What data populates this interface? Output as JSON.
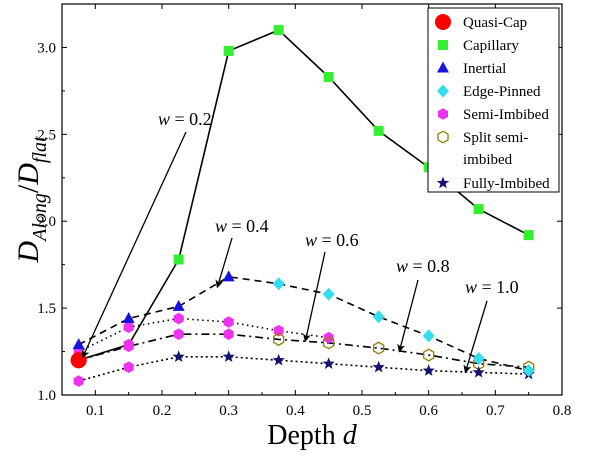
{
  "chart_data": {
    "type": "line",
    "title": "",
    "xlabel": "Depth d",
    "ylabel": "D_{Along}/D_{flat}",
    "xlim": [
      0.05,
      0.8
    ],
    "ylim": [
      1.0,
      3.25
    ],
    "x_ticks": [
      0.1,
      0.2,
      0.3,
      0.4,
      0.5,
      0.6,
      0.7,
      0.8
    ],
    "y_ticks": [
      1.0,
      1.5,
      2.0,
      2.5,
      3.0
    ],
    "x_tick_labels": [
      "0.1",
      "0.2",
      "0.3",
      "0.4",
      "0.5",
      "0.6",
      "0.7",
      "0.8"
    ],
    "y_tick_labels": [
      "1.0",
      "1.5",
      "2.0",
      "2.5",
      "3.0"
    ],
    "grid": false,
    "legend_position": "top-right",
    "legend": [
      {
        "label": "Quasi-Cap",
        "marker": "circle",
        "color": "#ff0000"
      },
      {
        "label": "Capillary",
        "marker": "square",
        "color": "#33ee33"
      },
      {
        "label": "Inertial",
        "marker": "triangle",
        "color": "#1515dd"
      },
      {
        "label": "Edge-Pinned",
        "marker": "diamond",
        "color": "#33ddee"
      },
      {
        "label": "Semi-Imbibed",
        "marker": "hexagon",
        "color": "#ee33ee"
      },
      {
        "label": "Split semi-\nimbibed",
        "marker": "hexagon-open",
        "color": "#997a00"
      },
      {
        "label": "Fully-Imbibed",
        "marker": "star",
        "color": "#141470"
      }
    ],
    "series": [
      {
        "name": "w = 0.2",
        "line_style": "solid",
        "x": [
          0.075,
          0.15,
          0.225,
          0.3,
          0.375,
          0.45,
          0.525,
          0.6,
          0.675,
          0.75
        ],
        "y": [
          1.2,
          1.29,
          1.78,
          2.98,
          3.1,
          2.83,
          2.52,
          2.31,
          2.07,
          1.92
        ],
        "regimes": [
          "Quasi-Cap",
          "Semi-Imbibed",
          "Capillary",
          "Capillary",
          "Capillary",
          "Capillary",
          "Capillary",
          "Capillary",
          "Capillary",
          "Capillary"
        ]
      },
      {
        "name": "w = 0.4",
        "line_style": "dashed",
        "x": [
          0.075,
          0.15,
          0.225,
          0.3,
          0.375,
          0.45,
          0.525,
          0.6,
          0.675,
          0.75
        ],
        "y": [
          1.29,
          1.44,
          1.51,
          1.68,
          1.64,
          1.58,
          1.45,
          1.34,
          1.21,
          1.14
        ],
        "regimes": [
          "Inertial",
          "Inertial",
          "Inertial",
          "Inertial",
          "Edge-Pinned",
          "Edge-Pinned",
          "Edge-Pinned",
          "Edge-Pinned",
          "Edge-Pinned",
          "Edge-Pinned"
        ]
      },
      {
        "name": "w = 0.6",
        "line_style": "dotted",
        "x": [
          0.075,
          0.15,
          0.225,
          0.3,
          0.375,
          0.45
        ],
        "y": [
          1.25,
          1.39,
          1.44,
          1.42,
          1.37,
          1.33
        ],
        "regimes": [
          "Semi-Imbibed",
          "Semi-Imbibed",
          "Semi-Imbibed",
          "Semi-Imbibed",
          "Semi-Imbibed",
          "Semi-Imbibed"
        ]
      },
      {
        "name": "w = 0.8",
        "line_style": "dash-dot",
        "x": [
          0.075,
          0.15,
          0.225,
          0.3,
          0.375,
          0.45,
          0.525,
          0.6,
          0.675,
          0.75
        ],
        "y": [
          1.2,
          1.28,
          1.35,
          1.35,
          1.32,
          1.3,
          1.27,
          1.23,
          1.18,
          1.16
        ],
        "regimes": [
          "Quasi-Cap",
          "Semi-Imbibed",
          "Semi-Imbibed",
          "Semi-Imbibed",
          "Split semi-imbibed",
          "Split semi-imbibed",
          "Split semi-imbibed",
          "Split semi-imbibed",
          "Split semi-imbibed",
          "Split semi-imbibed"
        ]
      },
      {
        "name": "w = 1.0",
        "line_style": "dense-dotted",
        "x": [
          0.075,
          0.15,
          0.225,
          0.3,
          0.375,
          0.45,
          0.525,
          0.6,
          0.675,
          0.75
        ],
        "y": [
          1.08,
          1.16,
          1.22,
          1.22,
          1.2,
          1.18,
          1.16,
          1.14,
          1.13,
          1.12
        ],
        "regimes": [
          "Semi-Imbibed",
          "Semi-Imbibed",
          "Fully-Imbibed",
          "Fully-Imbibed",
          "Fully-Imbibed",
          "Fully-Imbibed",
          "Fully-Imbibed",
          "Fully-Imbibed",
          "Fully-Imbibed",
          "Fully-Imbibed"
        ]
      }
    ],
    "annotations": [
      {
        "text": "w = 0.2",
        "series": "w = 0.2",
        "arrow_to": [
          0.075,
          1.2
        ]
      },
      {
        "text": "w = 0.4",
        "series": "w = 0.4",
        "arrow_to": [
          0.285,
          1.62
        ]
      },
      {
        "text": "w = 0.6",
        "series": "w = 0.6",
        "arrow_to": [
          0.415,
          1.32
        ]
      },
      {
        "text": "w = 0.8",
        "series": "w = 0.8",
        "arrow_to": [
          0.555,
          1.26
        ]
      },
      {
        "text": "w = 1.0",
        "series": "w = 1.0",
        "arrow_to": [
          0.655,
          1.14
        ]
      }
    ]
  }
}
